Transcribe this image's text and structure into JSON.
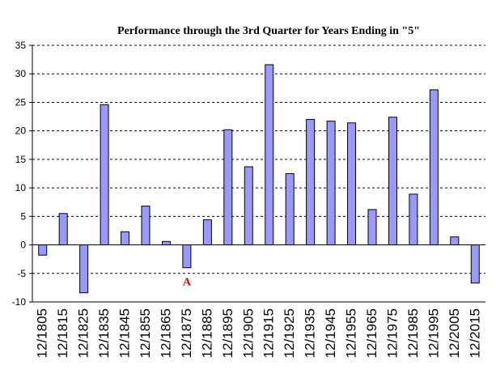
{
  "chart_data": {
    "type": "bar",
    "title": "Performance through the 3rd Quarter for Years Ending in \"5\"",
    "xlabel": "",
    "ylabel": "",
    "categories": [
      "12/1805",
      "12/1815",
      "12/1825",
      "12/1835",
      "12/1845",
      "12/1855",
      "12/1865",
      "12/1875",
      "12/1885",
      "12/1895",
      "12/1905",
      "12/1915",
      "12/1925",
      "12/1935",
      "12/1945",
      "12/1955",
      "12/1965",
      "12/1975",
      "12/1985",
      "12/1995",
      "12/2005",
      "12/2015"
    ],
    "values": [
      -1.8,
      5.5,
      -8.4,
      24.6,
      2.3,
      6.8,
      0.6,
      -4.0,
      4.4,
      20.2,
      13.7,
      31.6,
      12.5,
      22.0,
      21.7,
      21.4,
      6.2,
      22.4,
      8.9,
      27.2,
      1.4,
      -6.7
    ],
    "ylim": [
      -10,
      35
    ],
    "yticks": [
      -10,
      -5,
      0,
      5,
      10,
      15,
      20,
      25,
      30,
      35
    ],
    "grid": true,
    "bar_color": "#9999ff",
    "annotation": {
      "text": "A",
      "category": "12/1875",
      "color": "#cc0000"
    }
  }
}
